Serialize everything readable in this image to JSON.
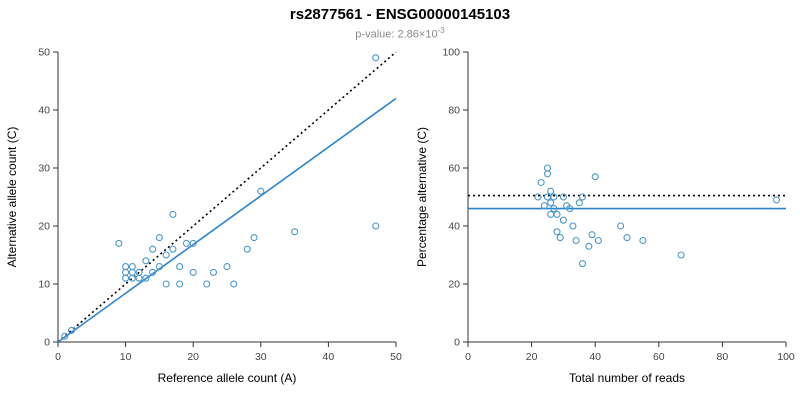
{
  "header": {
    "title": "rs2877561 - ENSG00000145103",
    "pvalue_text": "p-value: 2.86×10",
    "pvalue_exponent": "-3"
  },
  "colors": {
    "point": "#4a98c9",
    "fit_line": "#2b83d0",
    "identity_line": "#000000",
    "axis": "#333333",
    "tick_label": "#444444",
    "axis_title": "#000000"
  },
  "chart_data": [
    {
      "type": "scatter",
      "name": "allele-counts",
      "xlabel": "Reference allele count (A)",
      "ylabel": "Alternative allele count (C)",
      "xlim": [
        0,
        50
      ],
      "ylim": [
        0,
        50
      ],
      "xticks": [
        0,
        10,
        20,
        30,
        40,
        50
      ],
      "yticks": [
        0,
        10,
        20,
        30,
        40,
        50
      ],
      "grid": false,
      "legend": "none",
      "point_color": "#4a98c9",
      "lines": [
        {
          "name": "identity-dotted",
          "x1": 0,
          "y1": 0,
          "x2": 50,
          "y2": 50,
          "color": "#000000",
          "dash": true
        },
        {
          "name": "fit-solid",
          "x1": 0,
          "y1": 0,
          "x2": 50,
          "y2": 42,
          "color": "#2b83d0",
          "dash": false
        }
      ],
      "points": [
        [
          1,
          1
        ],
        [
          2,
          2
        ],
        [
          9,
          17
        ],
        [
          10,
          13
        ],
        [
          10,
          12
        ],
        [
          10,
          11
        ],
        [
          11,
          13
        ],
        [
          11,
          12
        ],
        [
          11,
          11
        ],
        [
          12,
          12
        ],
        [
          12,
          11
        ],
        [
          13,
          14
        ],
        [
          13,
          11
        ],
        [
          14,
          16
        ],
        [
          14,
          12
        ],
        [
          15,
          18
        ],
        [
          15,
          13
        ],
        [
          16,
          10
        ],
        [
          16,
          15
        ],
        [
          17,
          22
        ],
        [
          17,
          16
        ],
        [
          18,
          10
        ],
        [
          18,
          13
        ],
        [
          19,
          17
        ],
        [
          20,
          17
        ],
        [
          20,
          12
        ],
        [
          22,
          10
        ],
        [
          23,
          12
        ],
        [
          25,
          13
        ],
        [
          26,
          10
        ],
        [
          28,
          16
        ],
        [
          29,
          18
        ],
        [
          30,
          26
        ],
        [
          35,
          19
        ],
        [
          47,
          20
        ],
        [
          47,
          49
        ]
      ]
    },
    {
      "type": "scatter",
      "name": "percentage-alternative",
      "xlabel": "Total number of reads",
      "ylabel": "Percentage alternative (C)",
      "xlim": [
        0,
        100
      ],
      "ylim": [
        0,
        100
      ],
      "xticks": [
        0,
        20,
        40,
        60,
        80,
        100
      ],
      "yticks": [
        0,
        20,
        40,
        60,
        80,
        100
      ],
      "grid": false,
      "legend": "none",
      "point_color": "#4a98c9",
      "lines": [
        {
          "name": "expected-dotted",
          "x1": 0,
          "y1": 50.5,
          "x2": 100,
          "y2": 50.5,
          "color": "#000000",
          "dash": true
        },
        {
          "name": "observed-solid",
          "x1": 0,
          "y1": 46,
          "x2": 100,
          "y2": 46,
          "color": "#2b83d0",
          "dash": false
        }
      ],
      "points": [
        [
          22,
          50
        ],
        [
          23,
          55
        ],
        [
          24,
          47
        ],
        [
          25,
          60
        ],
        [
          25,
          58
        ],
        [
          25,
          50
        ],
        [
          26,
          52
        ],
        [
          26,
          48
        ],
        [
          26,
          44
        ],
        [
          27,
          50
        ],
        [
          27,
          46
        ],
        [
          28,
          44
        ],
        [
          28,
          38
        ],
        [
          29,
          36
        ],
        [
          30,
          50
        ],
        [
          30,
          42
        ],
        [
          31,
          47
        ],
        [
          32,
          46
        ],
        [
          33,
          40
        ],
        [
          34,
          35
        ],
        [
          35,
          48
        ],
        [
          36,
          50
        ],
        [
          36,
          27
        ],
        [
          38,
          33
        ],
        [
          39,
          37
        ],
        [
          40,
          57
        ],
        [
          41,
          35
        ],
        [
          48,
          40
        ],
        [
          50,
          36
        ],
        [
          55,
          35
        ],
        [
          67,
          30
        ],
        [
          97,
          49
        ]
      ]
    }
  ]
}
